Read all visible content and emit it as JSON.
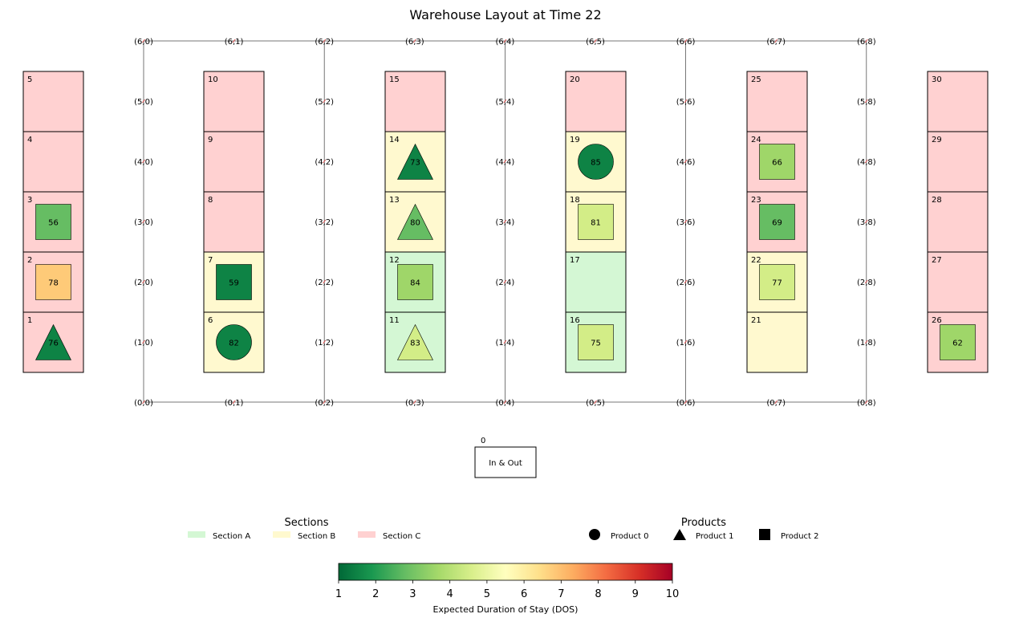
{
  "title": "Warehouse Layout at Time 22",
  "grid": {
    "rows": 7,
    "cols": 9,
    "node_labels": [
      [
        "(0,0)",
        "(0,1)",
        "(0,2)",
        "(0,3)",
        "(0,4)",
        "(0,5)",
        "(0,6)",
        "(0,7)",
        "(0,8)"
      ],
      [
        "(1,0)",
        "",
        "(1,2)",
        "",
        "(1,4)",
        "",
        "(1,6)",
        "",
        "(1,8)"
      ],
      [
        "(2,0)",
        "",
        "(2,2)",
        "",
        "(2,4)",
        "",
        "(2,6)",
        "",
        "(2,8)"
      ],
      [
        "(3,0)",
        "",
        "(3,2)",
        "",
        "(3,4)",
        "",
        "(3,6)",
        "",
        "(3,8)"
      ],
      [
        "(4,0)",
        "",
        "(4,2)",
        "",
        "(4,4)",
        "",
        "(4,6)",
        "",
        "(4,8)"
      ],
      [
        "(5,0)",
        "",
        "(5,2)",
        "",
        "(5,4)",
        "",
        "(5,6)",
        "",
        "(5,8)"
      ],
      [
        "(6,0)",
        "(6,1)",
        "(6,2)",
        "(6,3)",
        "(6,4)",
        "(6,5)",
        "(6,6)",
        "(6,7)",
        "(6,8)"
      ]
    ],
    "node_marker_color": "#e05050"
  },
  "section_colors": {
    "A": "#d4f7d4",
    "B": "#fff9cf",
    "C": "#ffd1d1"
  },
  "slots": [
    {
      "id": "1",
      "col": 0,
      "level": 0,
      "section": "C",
      "product": {
        "type": 1,
        "dos": 1.5,
        "label": "76"
      }
    },
    {
      "id": "2",
      "col": 0,
      "level": 1,
      "section": "C",
      "product": {
        "type": 2,
        "dos": 6.8,
        "label": "78"
      }
    },
    {
      "id": "3",
      "col": 0,
      "level": 2,
      "section": "C",
      "product": {
        "type": 2,
        "dos": 2.8,
        "label": "56"
      }
    },
    {
      "id": "4",
      "col": 0,
      "level": 3,
      "section": "C",
      "product": null
    },
    {
      "id": "5",
      "col": 0,
      "level": 4,
      "section": "C",
      "product": null
    },
    {
      "id": "6",
      "col": 1,
      "level": 0,
      "section": "B",
      "product": {
        "type": 0,
        "dos": 1.5,
        "label": "82"
      }
    },
    {
      "id": "7",
      "col": 1,
      "level": 1,
      "section": "B",
      "product": {
        "type": 2,
        "dos": 1.5,
        "label": "59"
      }
    },
    {
      "id": "8",
      "col": 1,
      "level": 2,
      "section": "C",
      "product": null
    },
    {
      "id": "9",
      "col": 1,
      "level": 3,
      "section": "C",
      "product": null
    },
    {
      "id": "10",
      "col": 1,
      "level": 4,
      "section": "C",
      "product": null
    },
    {
      "id": "11",
      "col": 2,
      "level": 0,
      "section": "A",
      "product": {
        "type": 1,
        "dos": 4.5,
        "label": "83"
      }
    },
    {
      "id": "12",
      "col": 2,
      "level": 1,
      "section": "A",
      "product": {
        "type": 2,
        "dos": 3.6,
        "label": "84"
      }
    },
    {
      "id": "13",
      "col": 2,
      "level": 2,
      "section": "B",
      "product": {
        "type": 1,
        "dos": 2.8,
        "label": "80"
      }
    },
    {
      "id": "14",
      "col": 2,
      "level": 3,
      "section": "B",
      "product": {
        "type": 1,
        "dos": 1.5,
        "label": "73"
      }
    },
    {
      "id": "15",
      "col": 2,
      "level": 4,
      "section": "C",
      "product": null
    },
    {
      "id": "16",
      "col": 3,
      "level": 0,
      "section": "A",
      "product": {
        "type": 2,
        "dos": 4.5,
        "label": "75"
      }
    },
    {
      "id": "17",
      "col": 3,
      "level": 1,
      "section": "A",
      "product": null
    },
    {
      "id": "18",
      "col": 3,
      "level": 2,
      "section": "B",
      "product": {
        "type": 2,
        "dos": 4.5,
        "label": "81"
      }
    },
    {
      "id": "19",
      "col": 3,
      "level": 3,
      "section": "B",
      "product": {
        "type": 0,
        "dos": 1.5,
        "label": "85"
      }
    },
    {
      "id": "20",
      "col": 3,
      "level": 4,
      "section": "C",
      "product": null
    },
    {
      "id": "21",
      "col": 4,
      "level": 0,
      "section": "B",
      "product": null
    },
    {
      "id": "22",
      "col": 4,
      "level": 1,
      "section": "B",
      "product": {
        "type": 2,
        "dos": 4.5,
        "label": "77"
      }
    },
    {
      "id": "23",
      "col": 4,
      "level": 2,
      "section": "C",
      "product": {
        "type": 2,
        "dos": 2.8,
        "label": "69"
      }
    },
    {
      "id": "24",
      "col": 4,
      "level": 3,
      "section": "C",
      "product": {
        "type": 2,
        "dos": 3.6,
        "label": "66"
      }
    },
    {
      "id": "25",
      "col": 4,
      "level": 4,
      "section": "C",
      "product": null
    },
    {
      "id": "26",
      "col": 5,
      "level": 0,
      "section": "C",
      "product": {
        "type": 2,
        "dos": 3.6,
        "label": "62"
      }
    },
    {
      "id": "27",
      "col": 5,
      "level": 1,
      "section": "C",
      "product": null
    },
    {
      "id": "28",
      "col": 5,
      "level": 2,
      "section": "C",
      "product": null
    },
    {
      "id": "29",
      "col": 5,
      "level": 3,
      "section": "C",
      "product": null
    },
    {
      "id": "30",
      "col": 5,
      "level": 4,
      "section": "C",
      "product": null
    }
  ],
  "io": {
    "id": "0",
    "label": "In & Out"
  },
  "legend_sections": {
    "title": "Sections",
    "items": [
      {
        "label": "Section A",
        "section": "A"
      },
      {
        "label": "Section B",
        "section": "B"
      },
      {
        "label": "Section C",
        "section": "C"
      }
    ]
  },
  "legend_products": {
    "title": "Products",
    "items": [
      {
        "label": "Product 0",
        "type": 0
      },
      {
        "label": "Product 1",
        "type": 1
      },
      {
        "label": "Product 2",
        "type": 2
      }
    ]
  },
  "colorbar": {
    "label": "Expected Duration of Stay (DOS)",
    "min": 1,
    "max": 10,
    "ticks": [
      "1",
      "2",
      "3",
      "4",
      "5",
      "6",
      "7",
      "8",
      "9",
      "10"
    ]
  }
}
